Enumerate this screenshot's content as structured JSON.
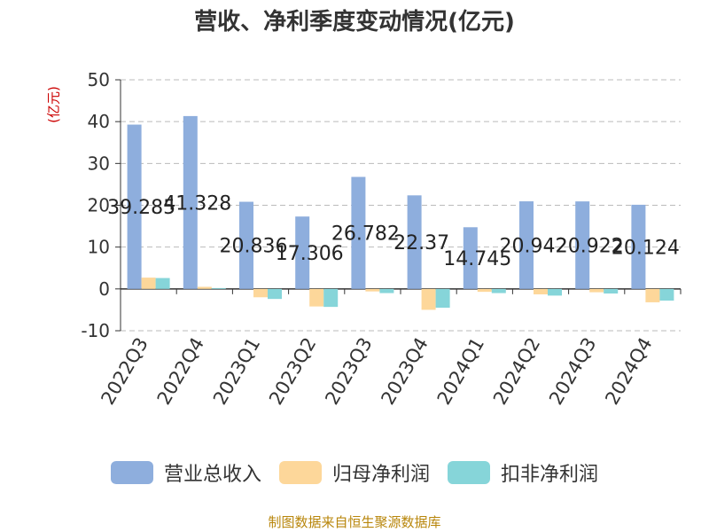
{
  "title": "营收、净利季度变动情况(亿元)",
  "unit_label": "(亿元)",
  "source": "制图数据来自恒生聚源数据库",
  "colors": {
    "revenue": "#8eaedd",
    "net_profit": "#fdd79a",
    "deducted_profit": "#86d5d9"
  },
  "chart_data": {
    "type": "bar",
    "title": "营收、净利季度变动情况(亿元)",
    "ylabel": "(亿元)",
    "ylim": [
      -10,
      50
    ],
    "yticks": [
      50,
      40,
      30,
      20,
      10,
      0,
      -10
    ],
    "grid": true,
    "legend_position": "bottom",
    "categories": [
      "2022Q3",
      "2022Q4",
      "2023Q1",
      "2023Q2",
      "2023Q3",
      "2023Q4",
      "2024Q1",
      "2024Q2",
      "2024Q3",
      "2024Q4"
    ],
    "series": [
      {
        "name": "营业总收入",
        "values": [
          39.285,
          41.328,
          20.836,
          17.306,
          26.782,
          22.37,
          14.745,
          20.942,
          20.922,
          20.124
        ],
        "labels": [
          "39.285",
          "41.328",
          "20.836",
          "17.306",
          "26.782",
          "22.37",
          "14.745",
          "20.942",
          "20.922",
          "20.124"
        ]
      },
      {
        "name": "归母净利润",
        "values": [
          2.7,
          0.5,
          -2.0,
          -4.2,
          -0.6,
          -5.0,
          -0.7,
          -1.3,
          -0.8,
          -3.2
        ]
      },
      {
        "name": "扣非净利润",
        "values": [
          2.6,
          0.2,
          -2.4,
          -4.3,
          -1.0,
          -4.5,
          -1.0,
          -1.6,
          -1.1,
          -2.8
        ]
      }
    ]
  }
}
